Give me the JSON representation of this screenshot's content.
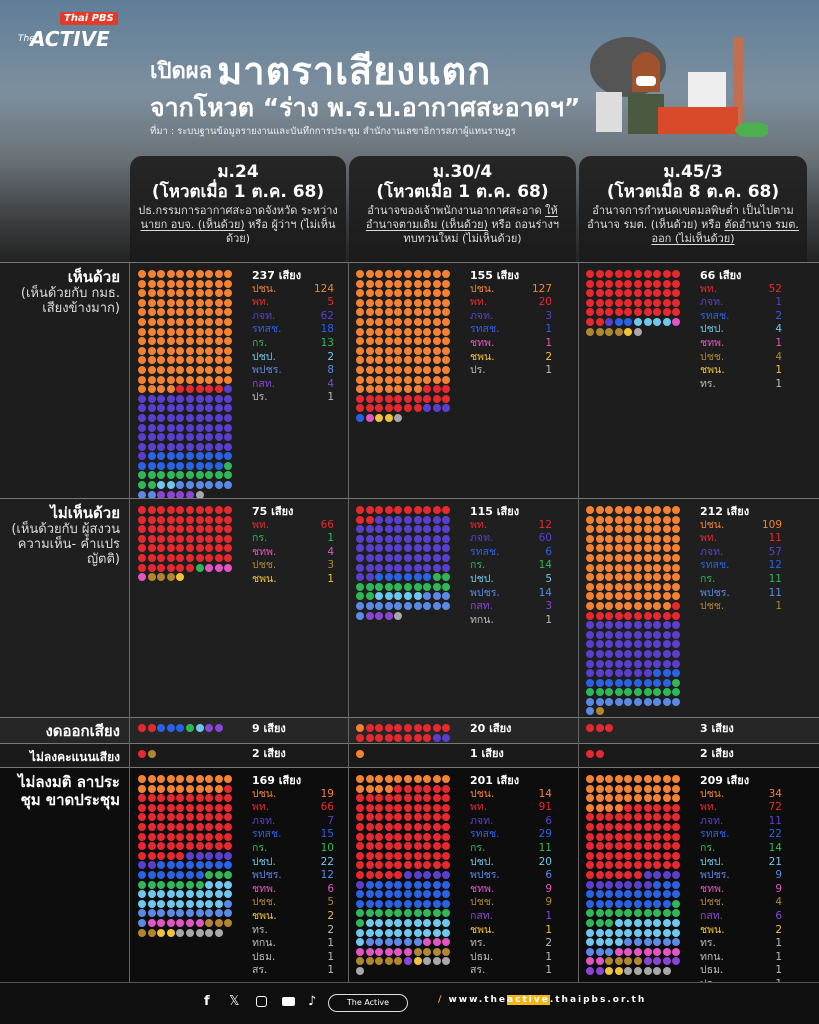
{
  "brand": {
    "broadcaster": "Thai PBS",
    "the": "The",
    "active": "ACTIVE"
  },
  "title": {
    "prefix": "เปิดผล",
    "main": "มาตราเสียงแตก",
    "line2": "จากโหวต “ร่าง พ.ร.บ.อากาศสะอาดฯ”",
    "source": "ที่มา : ระบบฐานข้อมูลรายงานและบันทึกการประชุม สำนักงานเลขาธิการสภาผู้แทนราษฎร"
  },
  "party_colors": {
    "ปชน.": "#f58232",
    "พท.": "#e8282e",
    "ภจท.": "#5a3fcf",
    "รทสช.": "#2a62e6",
    "กร.": "#2fb85a",
    "ปชป.": "#6ec8ee",
    "พปชร.": "#5a8ae6",
    "กสท.": "#8b45d6",
    "ปร.": "#a8a8a8",
    "ชทพ.": "#e455c4",
    "ปชช.": "#b0862e",
    "ชพน.": "#f2c23a",
    "ทร.": "#a8a8a8",
    "ทกน.": "#a8a8a8",
    "ปธม.": "#a8a8a8",
    "สร.": "#a8a8a8"
  },
  "columns": [
    {
      "section": "ม.24",
      "date": "(โหวตเมื่อ 1 ต.ค. 68)",
      "desc_pre": "ปธ.กรรมการอากาศสะอาดจังหวัด ระหว่าง ",
      "desc_u": "นายก อบจ. (เห็นด้วย)",
      "desc_post": " หรือ ผู้ว่าฯ (ไม่เห็นด้วย)"
    },
    {
      "section": "ม.30/4",
      "date": "(โหวตเมื่อ 1 ต.ค. 68)",
      "desc_pre": "อำนาจของเจ้าพนักงานอากาศสะอาด ",
      "desc_u": "ให้อำนาจตามเดิม (เห็นด้วย)",
      "desc_post": " หรือ ถอนร่างฯ ทบทวนใหม่ (ไม่เห็นด้วย)"
    },
    {
      "section": "ม.45/3",
      "date": "(โหวตเมื่อ 8 ต.ค. 68)",
      "desc_pre": "อำนาจการกำหนดเขตมลพิษต่ำ เป็นไปตามอำนาจ รมต. (เห็นด้วย) หรือ ",
      "desc_u": "ตัดอำนาจ รมต. ออก (ไม่เห็นด้วย)",
      "desc_post": ""
    }
  ],
  "rows": [
    {
      "label": "เห็นด้วย",
      "sub": "(เห็นด้วยกับ กมธ. เสียงข้างมาก)",
      "cells": [
        {
          "total": "237 เสียง",
          "parties": [
            [
              "ปชน.",
              124
            ],
            [
              "พท.",
              5
            ],
            [
              "ภจท.",
              62
            ],
            [
              "รทสช.",
              18
            ],
            [
              "กร.",
              13
            ],
            [
              "ปชป.",
              2
            ],
            [
              "พปชร.",
              8
            ],
            [
              "กสท.",
              4
            ],
            [
              "ปร.",
              1
            ]
          ]
        },
        {
          "total": "155 เสียง",
          "parties": [
            [
              "ปชน.",
              127
            ],
            [
              "พท.",
              20
            ],
            [
              "ภจท.",
              3
            ],
            [
              "รทสช.",
              1
            ],
            [
              "ชทพ.",
              1
            ],
            [
              "ชพน.",
              2
            ],
            [
              "ปร.",
              1
            ]
          ]
        },
        {
          "total": "66 เสียง",
          "parties": [
            [
              "พท.",
              52
            ],
            [
              "ภจท.",
              1
            ],
            [
              "รทสช.",
              2
            ],
            [
              "ปชป.",
              4
            ],
            [
              "ชทพ.",
              1
            ],
            [
              "ปชช.",
              4
            ],
            [
              "ชพน.",
              1
            ],
            [
              "ทร.",
              1
            ]
          ]
        }
      ]
    },
    {
      "label": "ไม่เห็นด้วย",
      "sub": "(เห็นด้วยกับ ผู้สงวนความเห็น- คำแปรญัตติ)",
      "cells": [
        {
          "total": "75 เสียง",
          "parties": [
            [
              "พท.",
              66
            ],
            [
              "กร.",
              1
            ],
            [
              "ชทพ.",
              4
            ],
            [
              "ปชช.",
              3
            ],
            [
              "ชพน.",
              1
            ]
          ]
        },
        {
          "total": "115 เสียง",
          "parties": [
            [
              "พท.",
              12
            ],
            [
              "ภจท.",
              60
            ],
            [
              "รทสช.",
              6
            ],
            [
              "กร.",
              14
            ],
            [
              "ปชป.",
              5
            ],
            [
              "พปชร.",
              14
            ],
            [
              "กสท.",
              3
            ],
            [
              "ทกน.",
              1
            ]
          ]
        },
        {
          "total": "212 เสียง",
          "parties": [
            [
              "ปชน.",
              109
            ],
            [
              "พท.",
              11
            ],
            [
              "ภจท.",
              57
            ],
            [
              "รทสช.",
              12
            ],
            [
              "กร.",
              11
            ],
            [
              "พปชร.",
              11
            ],
            [
              "ปชช.",
              1
            ]
          ]
        }
      ]
    },
    {
      "label": "งดออกเสียง",
      "sub": "",
      "cells": [
        {
          "total": "9 เสียง",
          "dots": [
            [
              "พท.",
              2
            ],
            [
              "รทสช.",
              3
            ],
            [
              "กร.",
              1
            ],
            [
              "ปชป.",
              1
            ],
            [
              "กสท.",
              2
            ]
          ]
        },
        {
          "total": "20 เสียง",
          "dots": [
            [
              "ปชน.",
              1
            ],
            [
              "พท.",
              17
            ],
            [
              "ภจท.",
              2
            ]
          ]
        },
        {
          "total": "3 เสียง",
          "dots": [
            [
              "พท.",
              3
            ]
          ]
        }
      ]
    },
    {
      "label": "ไม่ลงคะแนนเสียง",
      "sub": "",
      "cells": [
        {
          "total": "2 เสียง",
          "dots": [
            [
              "พท.",
              1
            ],
            [
              "ปชช.",
              1
            ]
          ]
        },
        {
          "total": "1 เสียง",
          "dots": [
            [
              "ปชน.",
              1
            ]
          ]
        },
        {
          "total": "2 เสียง",
          "dots": [
            [
              "พท.",
              2
            ]
          ]
        }
      ]
    },
    {
      "label": "ไม่ลงมติ ลาประชุม ขาดประชุม",
      "sub": "",
      "cells": [
        {
          "total": "169 เสียง",
          "parties": [
            [
              "ปชน.",
              19
            ],
            [
              "พท.",
              66
            ],
            [
              "ภจท.",
              7
            ],
            [
              "รทสช.",
              15
            ],
            [
              "กร.",
              10
            ],
            [
              "ปชป.",
              22
            ],
            [
              "พปชร.",
              12
            ],
            [
              "ชทพ.",
              6
            ],
            [
              "ปชช.",
              5
            ],
            [
              "ชพน.",
              2
            ],
            [
              "ทร.",
              2
            ],
            [
              "ทกน.",
              1
            ],
            [
              "ปธม.",
              1
            ],
            [
              "สร.",
              1
            ]
          ]
        },
        {
          "total": "201 เสียง",
          "parties": [
            [
              "ปชน.",
              14
            ],
            [
              "พท.",
              91
            ],
            [
              "ภจท.",
              6
            ],
            [
              "รทสช.",
              29
            ],
            [
              "กร.",
              11
            ],
            [
              "ปชป.",
              20
            ],
            [
              "พปชร.",
              6
            ],
            [
              "ชทพ.",
              9
            ],
            [
              "ปชช.",
              9
            ],
            [
              "กสท.",
              1
            ],
            [
              "ชพน.",
              1
            ],
            [
              "ทร.",
              2
            ],
            [
              "ปธม.",
              1
            ],
            [
              "สร.",
              1
            ]
          ]
        },
        {
          "total": "209 เสียง",
          "parties": [
            [
              "ปชน.",
              34
            ],
            [
              "พท.",
              72
            ],
            [
              "ภจท.",
              11
            ],
            [
              "รทสช.",
              22
            ],
            [
              "กร.",
              14
            ],
            [
              "ปชป.",
              21
            ],
            [
              "พปชร.",
              9
            ],
            [
              "ชทพ.",
              9
            ],
            [
              "ปชช.",
              4
            ],
            [
              "กสท.",
              6
            ],
            [
              "ชพน.",
              2
            ],
            [
              "ทร.",
              1
            ],
            [
              "ทกน.",
              1
            ],
            [
              "ปธม.",
              1
            ],
            [
              "ปร.",
              1
            ],
            [
              "สร.",
              1
            ]
          ]
        }
      ]
    }
  ],
  "footer": {
    "pill": "The Active",
    "url_pre": "www.the",
    "url_hl": "active",
    "url_post": ".thaipbs.or.th",
    "slash": "/"
  }
}
